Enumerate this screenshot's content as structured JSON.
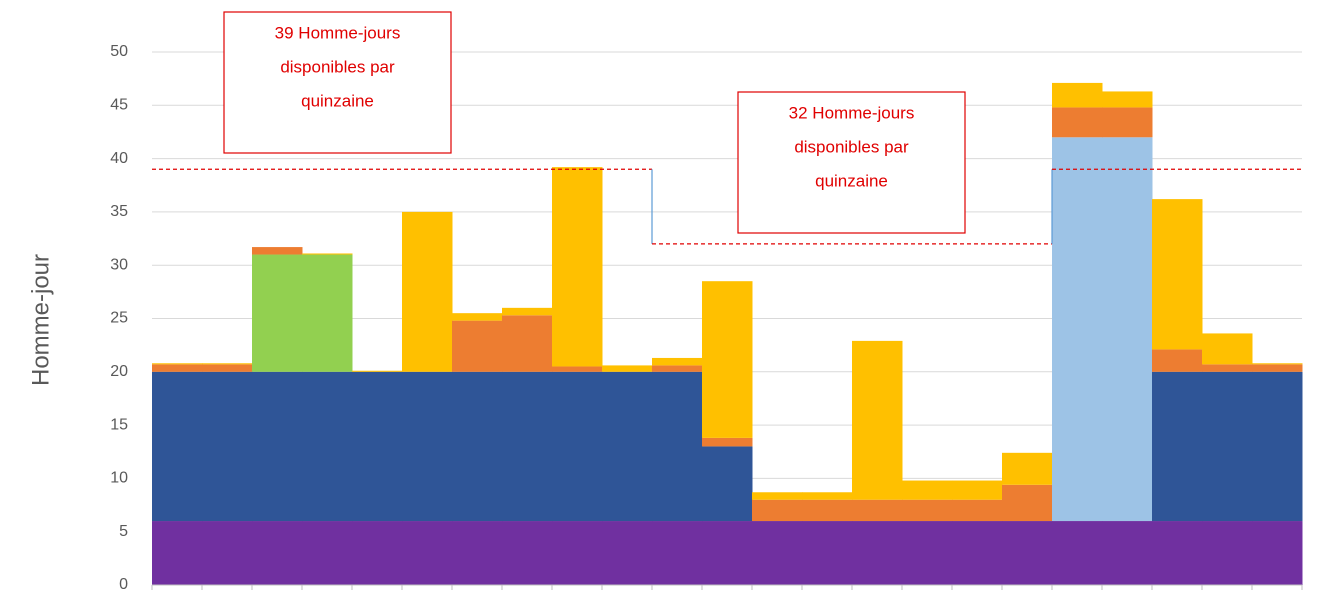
{
  "chart_data": {
    "type": "stacked_bar",
    "y_label": "Homme-jour",
    "categories": [
      null,
      null,
      null,
      null,
      null,
      null,
      null,
      null,
      null,
      null,
      null,
      null,
      null,
      null,
      null,
      null,
      null,
      null,
      null,
      null,
      null,
      null,
      null
    ],
    "series": [
      {
        "color": "#7030a0",
        "values": [
          6,
          6,
          6,
          6,
          6,
          6,
          6,
          6,
          6,
          6,
          6,
          6,
          6,
          6,
          6,
          6,
          6,
          6,
          6,
          6,
          6,
          6,
          6
        ]
      },
      {
        "color": "#2f5597",
        "values": [
          14,
          14,
          14,
          14,
          14,
          14,
          14,
          14,
          14,
          14,
          14,
          7,
          0,
          0,
          0,
          0,
          0,
          0,
          0,
          0,
          14,
          14,
          14
        ]
      },
      {
        "color": "#9dc3e6",
        "values": [
          0,
          0,
          0,
          0,
          0,
          0,
          0,
          0,
          0,
          0,
          0,
          0,
          0,
          0,
          0,
          0,
          0,
          0,
          36,
          36,
          0,
          0,
          0
        ]
      },
      {
        "color": "#92d050",
        "values": [
          0,
          0,
          11,
          11,
          0,
          0,
          0,
          0,
          0,
          0,
          0,
          0,
          0,
          0,
          0,
          0,
          0,
          0,
          0,
          0,
          0,
          0,
          0
        ]
      },
      {
        "color": "#ed7d31",
        "values": [
          0.7,
          0.7,
          0.7,
          0,
          0,
          0,
          4.8,
          5.3,
          0.5,
          0,
          0.6,
          0.8,
          2,
          2,
          2,
          2,
          2,
          3.4,
          2.8,
          2.8,
          2.1,
          0.7,
          0.7
        ]
      },
      {
        "color": "#ffc000",
        "values": [
          0.1,
          0.1,
          0,
          0.1,
          0.1,
          15,
          0.7,
          0.7,
          18.7,
          0.6,
          0.7,
          14.7,
          0.7,
          0.7,
          14.9,
          1.8,
          1.8,
          3,
          2.3,
          1.5,
          14.1,
          2.9,
          0.1
        ]
      }
    ],
    "capacity": [
      {
        "from": 0,
        "to": 10,
        "value": 39
      },
      {
        "from": 10,
        "to": 18,
        "value": 32
      },
      {
        "from": 18,
        "to": 23,
        "value": 39
      }
    ],
    "annotations": [
      {
        "lines": [
          "39 Homme-jours",
          "disponibles par",
          "quinzaine"
        ]
      },
      {
        "lines": [
          "32 Homme-jours",
          "disponibles par",
          "quinzaine"
        ]
      }
    ],
    "ylim": [
      0,
      50
    ],
    "yticks": [
      0,
      5,
      10,
      15,
      20,
      25,
      30,
      35,
      40,
      45,
      50
    ],
    "grid": true
  }
}
